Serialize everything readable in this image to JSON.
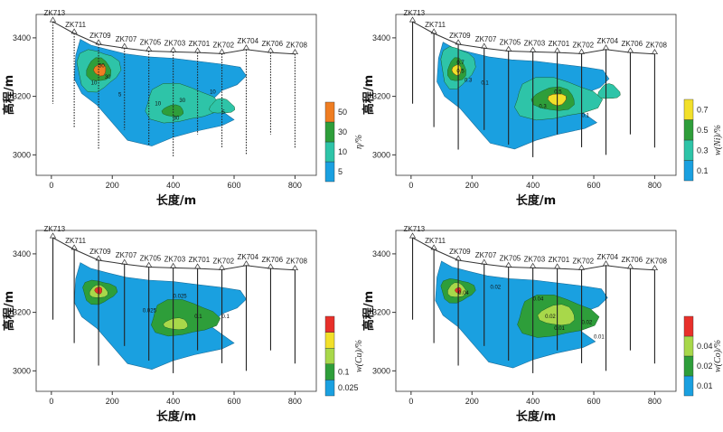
{
  "chart_data": [
    {
      "type": "heatmap",
      "xlabel": "长度/m",
      "ylabel": "高程/m",
      "xlim": [
        -50,
        870
      ],
      "ylim": [
        2930,
        3480
      ],
      "xticks": [
        "0",
        "200",
        "400",
        "600",
        "800"
      ],
      "yticks": [
        "3000",
        "3200",
        "3400"
      ],
      "colorbar_title": "η/%",
      "colorbar_labels": [
        "5",
        "10",
        "30",
        "50"
      ],
      "colors": [
        "#1aa0e0",
        "#2ec4a8",
        "#2e9e3a",
        "#ef7d22"
      ],
      "holes": [
        "ZK713",
        "ZK711",
        "ZK709",
        "ZK707",
        "ZK705",
        "ZK703",
        "ZK701",
        "ZK702",
        "ZK704",
        "ZK706",
        "ZK708"
      ],
      "contour_labels": [
        "50",
        "30",
        "10",
        "5",
        "30",
        "10",
        "30",
        "10",
        "5"
      ]
    },
    {
      "type": "heatmap",
      "xlabel": "长度/m",
      "ylabel": "高程/m",
      "xlim": [
        -50,
        870
      ],
      "ylim": [
        2930,
        3480
      ],
      "xticks": [
        "0",
        "200",
        "400",
        "600",
        "800"
      ],
      "yticks": [
        "3000",
        "3200",
        "3400"
      ],
      "colorbar_title": "w(Ni)/%",
      "colorbar_labels": [
        "0.1",
        "0.3",
        "0.5",
        "0.7"
      ],
      "colors": [
        "#1aa0e0",
        "#2ec4a8",
        "#2e9e3a",
        "#f2e02a"
      ],
      "holes": [
        "ZK713",
        "ZK711",
        "ZK709",
        "ZK707",
        "ZK705",
        "ZK703",
        "ZK701",
        "ZK702",
        "ZK704",
        "ZK706",
        "ZK708"
      ],
      "contour_labels": [
        "0.7",
        "0.5",
        "0.3",
        "0.1",
        "0.5",
        "0.3",
        "0.1"
      ]
    },
    {
      "type": "heatmap",
      "xlabel": "长度/m",
      "ylabel": "高程/m",
      "xlim": [
        -50,
        870
      ],
      "ylim": [
        2930,
        3480
      ],
      "xticks": [
        "0",
        "200",
        "400",
        "600",
        "800"
      ],
      "yticks": [
        "3000",
        "3200",
        "3400"
      ],
      "colorbar_title": "w(Cu)/%",
      "colorbar_labels": [
        "0.025",
        "0.1"
      ],
      "colors": [
        "#1aa0e0",
        "#2e9e3a",
        "#a8d84a",
        "#f2e02a",
        "#e8302a"
      ],
      "holes": [
        "ZK713",
        "ZK711",
        "ZK709",
        "ZK707",
        "ZK705",
        "ZK703",
        "ZK701",
        "ZK702",
        "ZK704",
        "ZK706",
        "ZK708"
      ],
      "contour_labels": [
        "0.025",
        "0.1",
        "0.025",
        "0.1"
      ]
    },
    {
      "type": "heatmap",
      "xlabel": "长度/m",
      "ylabel": "高程/m",
      "xlim": [
        -50,
        870
      ],
      "ylim": [
        2930,
        3480
      ],
      "xticks": [
        "0",
        "200",
        "400",
        "600",
        "800"
      ],
      "yticks": [
        "3000",
        "3200",
        "3400"
      ],
      "colorbar_title": "w(Co)/%",
      "colorbar_labels": [
        "0.01",
        "0.02",
        "0.04"
      ],
      "colors": [
        "#1aa0e0",
        "#2e9e3a",
        "#a8d84a",
        "#e8302a"
      ],
      "holes": [
        "ZK713",
        "ZK711",
        "ZK709",
        "ZK707",
        "ZK705",
        "ZK703",
        "ZK701",
        "ZK702",
        "ZK704",
        "ZK706",
        "ZK708"
      ],
      "contour_labels": [
        "0.04",
        "0.02",
        "0.04",
        "0.02",
        "0.01",
        "0.02",
        "0.01"
      ]
    }
  ]
}
